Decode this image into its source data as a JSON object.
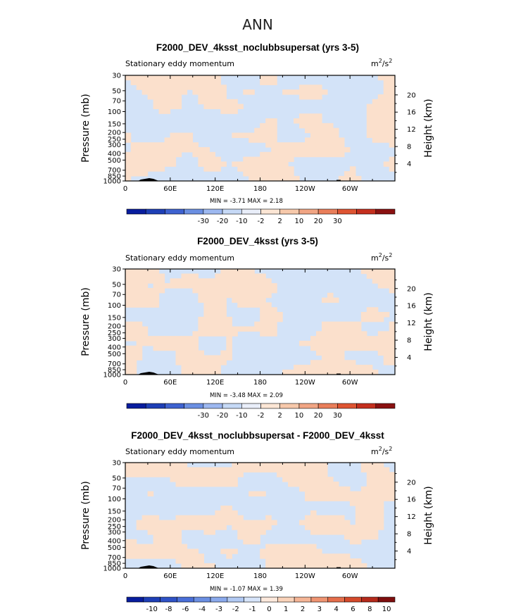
{
  "main_title": "ANN",
  "chart_data": [
    {
      "type": "heatmap",
      "title": "F2000_DEV_4ksst_noclubbsupersat (yrs 3-5)",
      "subtitle": "Stationary eddy momentum",
      "units_base": "m",
      "units_sup": "2",
      "units_mid": "/s",
      "units_sup2": "2",
      "ylabel": "Pressure  (mb)",
      "ylabel_right": "Height  (km)",
      "x_tick_labels": [
        "0",
        "60E",
        "120E",
        "180",
        "120W",
        "60W"
      ],
      "y_tick_labels": [
        "30",
        "50",
        "70",
        "100",
        "150",
        "200",
        "250",
        "300",
        "400",
        "500",
        "700",
        "850",
        "1000"
      ],
      "height_tick_labels": [
        "20",
        "16",
        "12",
        "8",
        "4"
      ],
      "min_label": "MIN =",
      "min_value": "-3.71",
      "max_label": "MAX =",
      "max_value": "2.18",
      "colorbar_labels": [
        "-30",
        "-20",
        "-10",
        "-2",
        "2",
        "10",
        "20",
        "30"
      ],
      "colors": [
        "#081d9e",
        "#1e3fb6",
        "#3e62d0",
        "#6b8fe2",
        "#9db8f0",
        "#c6d9f6",
        "#e9eef9",
        "#fce6d5",
        "#f7c9ab",
        "#f1a584",
        "#e97e5a",
        "#de5432",
        "#c42f1e",
        "#8a1111"
      ],
      "pos_fraction": 0.45
    },
    {
      "type": "heatmap",
      "title": "F2000_DEV_4ksst (yrs 3-5)",
      "subtitle": "Stationary eddy momentum",
      "units_base": "m",
      "units_sup": "2",
      "units_mid": "/s",
      "units_sup2": "2",
      "ylabel": "Pressure  (mb)",
      "ylabel_right": "Height  (km)",
      "x_tick_labels": [
        "0",
        "60E",
        "120E",
        "180",
        "120W",
        "60W"
      ],
      "y_tick_labels": [
        "30",
        "50",
        "70",
        "100",
        "150",
        "200",
        "250",
        "300",
        "400",
        "500",
        "700",
        "850",
        "1000"
      ],
      "height_tick_labels": [
        "20",
        "16",
        "12",
        "8",
        "4"
      ],
      "min_label": "MIN =",
      "min_value": "-3.48",
      "max_label": "MAX =",
      "max_value": "2.09",
      "colorbar_labels": [
        "-30",
        "-20",
        "-10",
        "-2",
        "2",
        "10",
        "20",
        "30"
      ],
      "colors": [
        "#081d9e",
        "#1e3fb6",
        "#3e62d0",
        "#6b8fe2",
        "#9db8f0",
        "#c6d9f6",
        "#e9eef9",
        "#fce6d5",
        "#f7c9ab",
        "#f1a584",
        "#e97e5a",
        "#de5432",
        "#c42f1e",
        "#8a1111"
      ],
      "pos_fraction": 0.47
    },
    {
      "type": "heatmap",
      "title": "F2000_DEV_4ksst_noclubbsupersat - F2000_DEV_4ksst",
      "subtitle": "Stationary eddy momentum",
      "units_base": "m",
      "units_sup": "2",
      "units_mid": "/s",
      "units_sup2": "2",
      "ylabel": "Pressure  (mb)",
      "ylabel_right": "Height  (km)",
      "x_tick_labels": [
        "0",
        "60E",
        "120E",
        "180",
        "120W",
        "60W"
      ],
      "y_tick_labels": [
        "30",
        "50",
        "70",
        "100",
        "150",
        "200",
        "250",
        "300",
        "400",
        "500",
        "700",
        "850",
        "1000"
      ],
      "height_tick_labels": [
        "20",
        "16",
        "12",
        "8",
        "4"
      ],
      "min_label": "MIN =",
      "min_value": "-1.07",
      "max_label": "MAX =",
      "max_value": "1.39",
      "colorbar_labels": [
        "-10",
        "-8",
        "-6",
        "-4",
        "-3",
        "-2",
        "-1",
        "0",
        "1",
        "2",
        "3",
        "4",
        "6",
        "8",
        "10"
      ],
      "colors": [
        "#081d9e",
        "#1e3fb6",
        "#2f52c6",
        "#4a6fd8",
        "#6b8fe2",
        "#8aa9ec",
        "#b1c9f3",
        "#d6e4fa",
        "#fde9dc",
        "#fad3ba",
        "#f5b596",
        "#ef9472",
        "#e56e4b",
        "#d44a2b",
        "#b52a1b",
        "#7e0e0e"
      ],
      "pos_fraction": 0.5
    }
  ]
}
